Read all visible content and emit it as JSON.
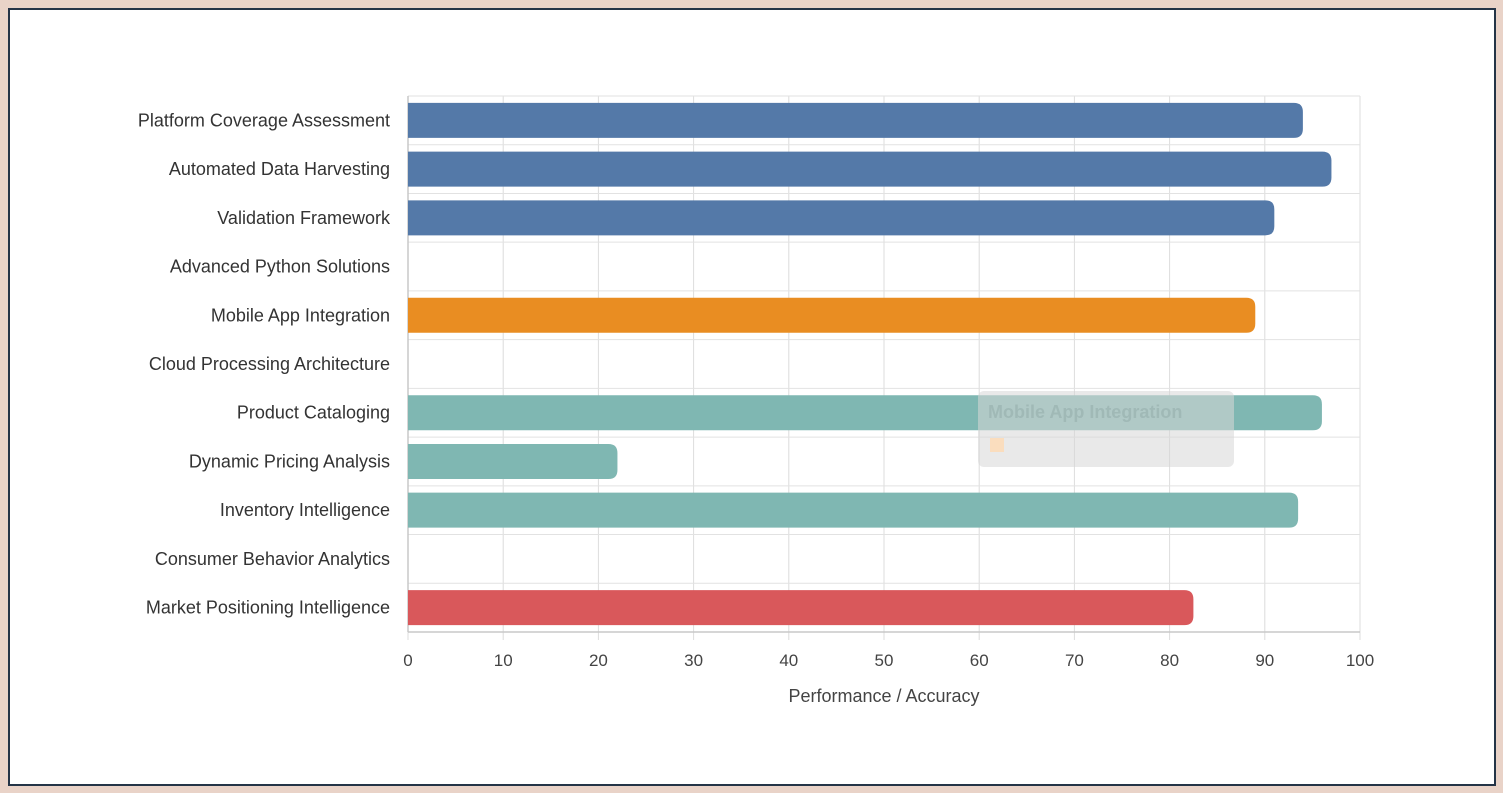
{
  "chart_data": {
    "type": "bar",
    "orientation": "horizontal",
    "categories": [
      "Platform Coverage Assessment",
      "Automated Data Harvesting",
      "Validation Framework",
      "Advanced Python Solutions",
      "Mobile App Integration",
      "Cloud Processing Architecture",
      "Product Cataloging",
      "Dynamic Pricing Analysis",
      "Inventory Intelligence",
      "Consumer Behavior Analytics",
      "Market Positioning Intelligence"
    ],
    "values": [
      94,
      97,
      91,
      null,
      89,
      null,
      96,
      22,
      93.5,
      null,
      82.5
    ],
    "colors": [
      "#5479a8",
      "#5479a8",
      "#5479a8",
      "#5479a8",
      "#e98d22",
      "#e98d22",
      "#7fb7b2",
      "#7fb7b2",
      "#7fb7b2",
      "#d9585b",
      "#d9585b"
    ],
    "xlabel": "Performance / Accuracy",
    "ylabel": "",
    "xlim": [
      0,
      100
    ],
    "xticks": [
      "0",
      "10",
      "20",
      "30",
      "40",
      "50",
      "60",
      "70",
      "80",
      "90",
      "100"
    ],
    "grid": true,
    "legend": "none",
    "tooltip": {
      "title": "Mobile App Integration",
      "swatch_color": "#e98d22"
    }
  }
}
